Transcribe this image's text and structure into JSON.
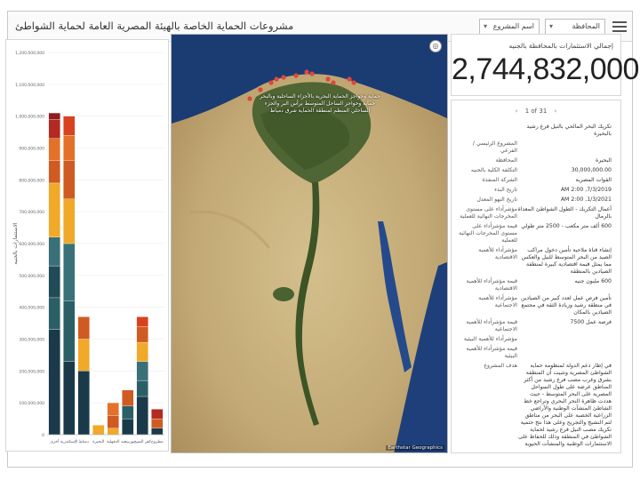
{
  "header": {
    "title": "مشروعات الحماية الخاصة بالهيئة المصرية العامة لحماية الشواطئ",
    "governorate_select": "المحافظة",
    "project_select": "اسم المشروع"
  },
  "kpi": {
    "label": "إجمالي الاستثمارات بالمحافظة بالجنيه",
    "value": "2,744,832,000"
  },
  "details": {
    "pager": "1 of 31",
    "rows": [
      {
        "k": "",
        "v": "تكريك البحر المالحي بالنيل فرع رشيد بالبحيرة"
      },
      {
        "k": "المشروع الرئيسي / الفرعي",
        "v": ""
      },
      {
        "k": "المحافظة",
        "v": "البحيرة"
      },
      {
        "k": "التكلفة الكلية بالجنيه",
        "v": "30,000,000.00"
      },
      {
        "k": "الشركة المنفذة",
        "v": "القوات المصرية"
      },
      {
        "k": "تاريخ البدء",
        "v": "7/3/2019, 2:00 AM"
      },
      {
        "k": "تاريخ النهو المعدل",
        "v": "1/3/2021, 2:00 AM"
      },
      {
        "k": "مؤشرأداء على مستوى المخرجات النهائية للعملية",
        "v": "أعمال التكريك - الطول الشواطئ المعداة بالرمال"
      },
      {
        "k": "قيمة مؤشرأداء على مستوى المخرجات النهائية للعملية",
        "v": "600 ألف متر مكعب - 2500 متر طولي"
      },
      {
        "k": "مؤشرأداء للأهمية الاقتصادية",
        "v": "إنشاء قناة ملاحية تأمين دخول مراكب الصيد من البحر المتوسط للنيل والعكس مما يمثل قيمة اقتصادية كبيرة لمنطقة الصيادين بالمنطقة"
      },
      {
        "k": "قيمة مؤشرأداء للأهمية الاقتصادية",
        "v": "600 مليون جنيه"
      },
      {
        "k": "مؤشرأداء للأهمية الاجتماعية",
        "v": "تأمين فرص عمل لعدد كبير من الصيادين في منطقة رشيد وزيادة الثقة في مجتمع الصيادين بالمكان"
      },
      {
        "k": "قيمة مؤشرأداء للأهمية الاجتماعية",
        "v": "فرصة عمل 7500"
      },
      {
        "k": "مؤشرأداء للأهمية البيئية",
        "v": ""
      },
      {
        "k": "قيمة مؤشرأداء للأهمية البيئية",
        "v": ""
      },
      {
        "k": "هدف المشروع",
        "v": "في إطار دعم الدولة لمنظومة حماية الشواطئ المصرية وتثبيت أن المنطقة بشرق وغرب مصب فرع رشيد من أكثر المناطق عرضة على طول السواحل المصرية على البحر المتوسط - حيث هددت ظاهرة النحر البحري وتراجع خط الشاطئ المنشآت الوطنية والأراضي الزراعية الخصبة على البحر من مناطق لتم النشيج والتجريح وعلى هذا نتج حتمية تكريك مصب النيل فرع رشيد لحماية الشواطئ في المنطقة وذلك للحفاظ على الاستثمارات الوطنية والمنشآت الحيوية"
      }
    ]
  },
  "map": {
    "popup_line1": "حماية وحواجز الحماية البحرية بالأجزاء الساحلية وبالبحر",
    "popup_line2": "حماية وحواجز الساحل المتوسط برأس البر والجزء",
    "popup_line3": "الساحلي المنظم لمنطقة الحماية شرق دمياط",
    "attribution": "Earthstar Geographics",
    "colors": {
      "sea": "#1b3b73",
      "desert": "#c8b37f",
      "delta": "#536b37",
      "marker": "#e0463b"
    }
  },
  "chart_data": {
    "type": "bar",
    "stacked": true,
    "ylabel": "الاستثمارات بالجنيه",
    "ylim": [
      0,
      1200000000
    ],
    "yticks": [
      "1,200,000,000",
      "1,100,000,000",
      "1,000,000,000",
      "900,000,000",
      "800,000,000",
      "700,000,000",
      "600,000,000",
      "500,000,000",
      "400,000,000",
      "300,000,000",
      "200,000,000",
      "100,000,000",
      "0"
    ],
    "categories": [
      "أخرى",
      "الإسكندرية",
      "دمياط",
      "البحيرة",
      "الدقهلية",
      "بورسعيد",
      "كفر الشيخ",
      "مطروح"
    ],
    "bars": [
      {
        "segments": [
          {
            "v": 330000000,
            "c": "#1a3a4a"
          },
          {
            "v": 100000000,
            "c": "#2b5f66"
          },
          {
            "v": 100000000,
            "c": "#204b57"
          },
          {
            "v": 90000000,
            "c": "#3a7078"
          },
          {
            "v": 170000000,
            "c": "#f0a929"
          },
          {
            "v": 70000000,
            "c": "#cf5b23"
          },
          {
            "v": 70000000,
            "c": "#e47129"
          },
          {
            "v": 60000000,
            "c": "#b22a22"
          },
          {
            "v": 20000000,
            "c": "#8e1d1d"
          }
        ]
      },
      {
        "segments": [
          {
            "v": 230000000,
            "c": "#1a3a4a"
          },
          {
            "v": 190000000,
            "c": "#2b5f66"
          },
          {
            "v": 180000000,
            "c": "#3a7078"
          },
          {
            "v": 140000000,
            "c": "#f0a929"
          },
          {
            "v": 120000000,
            "c": "#cf5b23"
          },
          {
            "v": 80000000,
            "c": "#e47129"
          },
          {
            "v": 60000000,
            "c": "#d8421f"
          }
        ]
      },
      {
        "segments": [
          {
            "v": 200000000,
            "c": "#1a3a4a"
          },
          {
            "v": 100000000,
            "c": "#f0a929"
          },
          {
            "v": 70000000,
            "c": "#cf5b23"
          }
        ]
      },
      {
        "segments": [
          {
            "v": 30000000,
            "c": "#f0a929"
          }
        ]
      },
      {
        "segments": [
          {
            "v": 20000000,
            "c": "#f0a929"
          },
          {
            "v": 40000000,
            "c": "#cf5b23"
          },
          {
            "v": 40000000,
            "c": "#e47129"
          }
        ]
      },
      {
        "segments": [
          {
            "v": 50000000,
            "c": "#1a3a4a"
          },
          {
            "v": 40000000,
            "c": "#2b5f66"
          },
          {
            "v": 50000000,
            "c": "#cf5b23"
          }
        ]
      },
      {
        "segments": [
          {
            "v": 120000000,
            "c": "#1a3a4a"
          },
          {
            "v": 50000000,
            "c": "#2b5f66"
          },
          {
            "v": 60000000,
            "c": "#3a7078"
          },
          {
            "v": 60000000,
            "c": "#f0a929"
          },
          {
            "v": 50000000,
            "c": "#cf5b23"
          },
          {
            "v": 30000000,
            "c": "#d8421f"
          }
        ]
      },
      {
        "segments": [
          {
            "v": 20000000,
            "c": "#1a3a4a"
          },
          {
            "v": 30000000,
            "c": "#cf5b23"
          },
          {
            "v": 30000000,
            "c": "#b22a22"
          }
        ]
      }
    ]
  }
}
